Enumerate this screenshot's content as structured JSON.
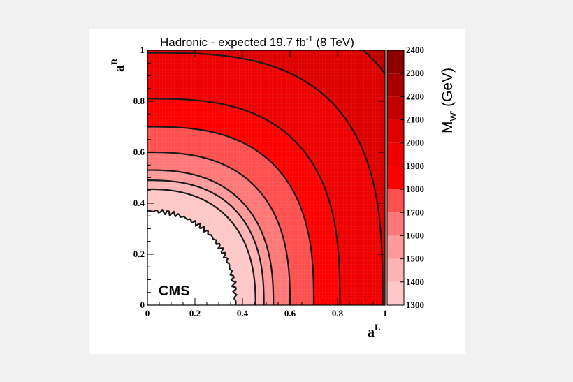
{
  "chart_data": {
    "type": "heatmap",
    "title": "Hadronic - expected  19.7 fb",
    "title_superscript": "-1",
    "title_suffix": " (8 TeV)",
    "xlabel": "a",
    "xlabel_superscript": "L",
    "ylabel": "a",
    "ylabel_superscript": "R",
    "zlabel": "M",
    "zlabel_subscript": "W'",
    "zlabel_unit": " (GeV)",
    "annotation": "CMS",
    "xlim": [
      0,
      1
    ],
    "ylim": [
      0,
      1
    ],
    "zlim": [
      1300,
      2400
    ],
    "x_ticks": [
      "0",
      "0.2",
      "0.4",
      "0.6",
      "0.8",
      "1"
    ],
    "y_ticks": [
      "0",
      "0.2",
      "0.4",
      "0.6",
      "0.8",
      "1"
    ],
    "z_ticks": [
      "1300",
      "1400",
      "1500",
      "1600",
      "1700",
      "1800",
      "1900",
      "2000",
      "2100",
      "2200",
      "2300",
      "2400"
    ],
    "contour_levels": [
      {
        "value": 1300,
        "intercept": 0.37,
        "shape_exponent": 2.2,
        "jagged": true
      },
      {
        "value": 1400,
        "intercept": 0.455,
        "shape_exponent": 2.4
      },
      {
        "value": 1500,
        "intercept": 0.49,
        "shape_exponent": 2.5
      },
      {
        "value": 1600,
        "intercept": 0.53,
        "shape_exponent": 2.5
      },
      {
        "value": 1700,
        "intercept": 0.6,
        "shape_exponent": 2.6
      },
      {
        "value": 1800,
        "intercept": 0.7,
        "shape_exponent": 2.7
      },
      {
        "value": 1900,
        "intercept": 0.81,
        "shape_exponent": 2.8
      },
      {
        "value": 2000,
        "intercept": 0.99,
        "shape_exponent": 3.0
      },
      {
        "value": 2100,
        "intercept": 1.18,
        "shape_exponent": 3.3
      }
    ],
    "color_bands": [
      {
        "from": 1300,
        "to": 1400,
        "color": "#ffc8c8"
      },
      {
        "from": 1400,
        "to": 1500,
        "color": "#ffb4b4"
      },
      {
        "from": 1500,
        "to": 1600,
        "color": "#ff9a9a"
      },
      {
        "from": 1600,
        "to": 1700,
        "color": "#ff7878"
      },
      {
        "from": 1700,
        "to": 1800,
        "color": "#ff5050"
      },
      {
        "from": 1800,
        "to": 1900,
        "color": "#ff0000"
      },
      {
        "from": 1900,
        "to": 2000,
        "color": "#ee0000"
      },
      {
        "from": 2000,
        "to": 2100,
        "color": "#dd0000"
      },
      {
        "from": 2100,
        "to": 2200,
        "color": "#c00000"
      },
      {
        "from": 2200,
        "to": 2300,
        "color": "#a80000"
      },
      {
        "from": 2300,
        "to": 2400,
        "color": "#8c0000"
      }
    ],
    "palette": {
      "below_min": "#ffffff",
      "contour_line": "#1a1a1a",
      "frame": "#000000"
    },
    "grid": true
  }
}
